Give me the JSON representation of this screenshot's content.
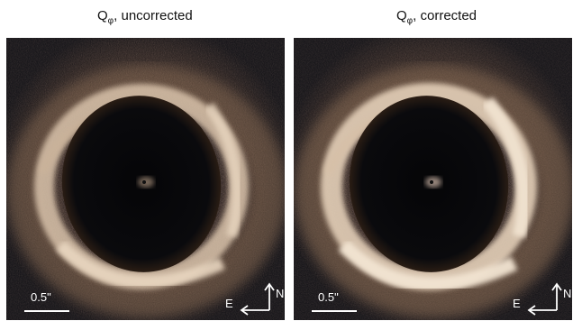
{
  "panels": [
    {
      "title_main": "Q",
      "title_sub": "φ",
      "title_rest": ", uncorrected",
      "scale_label": "0.5\"",
      "compass_n": "N",
      "compass_e": "E",
      "ring_color": "#e8d6c0"
    },
    {
      "title_main": "Q",
      "title_sub": "φ",
      "title_rest": ", corrected",
      "scale_label": "0.5\"",
      "compass_n": "N",
      "compass_e": "E",
      "ring_color": "#f2e4d2"
    }
  ],
  "colors": {
    "background": "#0b0c10",
    "noise_warm": "#6b4a33",
    "annotation": "#ffffff"
  }
}
